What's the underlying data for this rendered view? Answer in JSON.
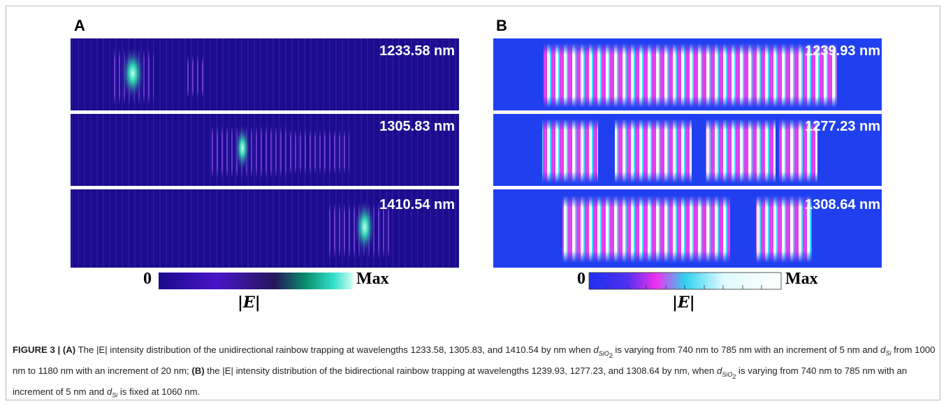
{
  "figure": {
    "panel_a": {
      "label": "A",
      "wavelengths": [
        "1233.58 nm",
        "1305.83 nm",
        "1410.54 nm"
      ],
      "colorbar": {
        "min": "0",
        "max": "Max",
        "quantity": "|E|"
      }
    },
    "panel_b": {
      "label": "B",
      "wavelengths": [
        "1239.93 nm",
        "1277.23 nm",
        "1308.64 nm"
      ],
      "colorbar": {
        "min": "0",
        "max": "Max",
        "quantity": "|E|"
      }
    }
  },
  "caption": {
    "label": "FIGURE 3 |",
    "symbols": {
      "d_sio2": {
        "base": "d",
        "sub": "SiO",
        "subsub": "2"
      },
      "d_si": {
        "base": "d",
        "sub": "Si"
      }
    },
    "parts": [
      "(A)",
      " The |E| intensity distribution of the unidirectional rainbow trapping at wavelengths  1233.58,  1305.83,  and 1410.54  by nm when ",
      " is varying from 740 nm to 785 nm with an increment of 5 nm and ",
      " from 1000 nm to 1180 nm with an increment of 20 nm; ",
      "(B)",
      " the |E| intensity distribution of the bidirectional rainbow trapping at wavelengths  1239.93,  1277.23,  and 1308.64  by nm, when ",
      " is varying from 740 nm to 785 nm with an increment of 5 nm and ",
      " is fixed at 1060 nm."
    ]
  }
}
